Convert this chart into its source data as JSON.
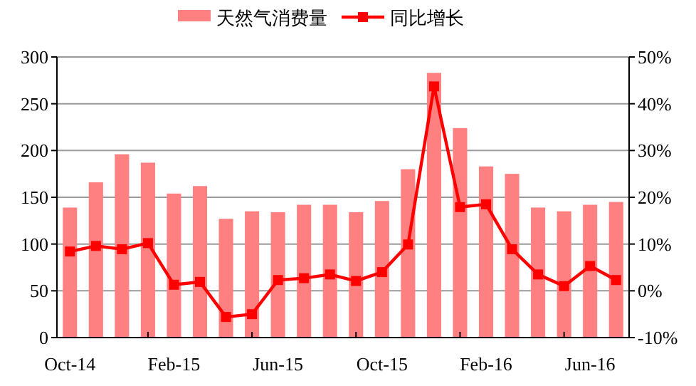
{
  "chart_data": {
    "type": "bar",
    "categories": [
      "Oct-14",
      null,
      null,
      null,
      "Feb-15",
      null,
      null,
      null,
      "Jun-15",
      null,
      null,
      null,
      "Oct-15",
      null,
      null,
      null,
      "Feb-16",
      null,
      null,
      null,
      "Jun-16",
      null
    ],
    "series": [
      {
        "name": "天然气消费量",
        "color": "#ff8080",
        "values": [
          139,
          166,
          196,
          187,
          154,
          162,
          127,
          135,
          134,
          142,
          142,
          134,
          146,
          180,
          283,
          224,
          183,
          175,
          139,
          135,
          142,
          145
        ]
      },
      {
        "name": "同比增长",
        "type": "line",
        "axis": "y2",
        "color": "#ff0000",
        "marker": "square",
        "values": [
          8.4,
          9.6,
          8.9,
          10.2,
          1.3,
          1.9,
          -5.6,
          -5.0,
          2.3,
          2.7,
          3.5,
          2.1,
          4.0,
          9.9,
          43.7,
          17.9,
          18.5,
          8.9,
          3.5,
          1.0,
          5.3,
          2.3
        ]
      }
    ],
    "ylim": [
      0,
      300
    ],
    "yticks": [
      0,
      50,
      100,
      150,
      200,
      250,
      300
    ],
    "y2lim": [
      -10,
      50
    ],
    "y2ticks": [
      {
        "value": -10,
        "label": "-10%"
      },
      {
        "value": 0,
        "label": "0%"
      },
      {
        "value": 10,
        "label": "10%"
      },
      {
        "value": 20,
        "label": "20%"
      },
      {
        "value": 30,
        "label": "30%"
      },
      {
        "value": 40,
        "label": "40%"
      },
      {
        "value": 50,
        "label": "50%"
      }
    ],
    "grid": "y",
    "legend": "top"
  }
}
